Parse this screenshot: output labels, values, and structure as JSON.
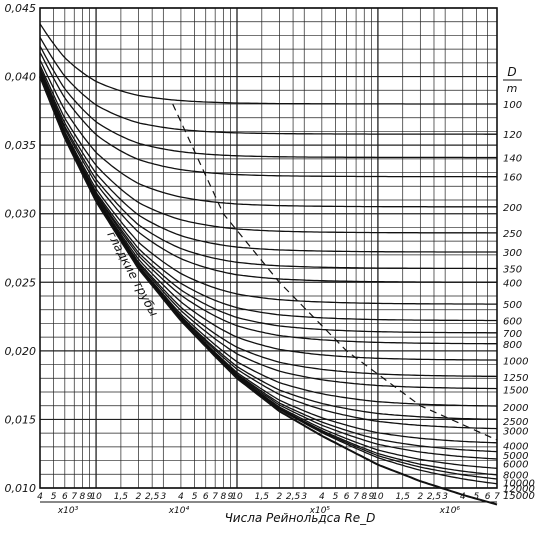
{
  "chart_data": {
    "type": "line",
    "title": "",
    "xlabel": "Числа Рейнольдса Re_D",
    "ylabel": "",
    "xscale": "log",
    "xlim": [
      4000,
      7000000
    ],
    "ylim": [
      0.01,
      0.045
    ],
    "y_ticks": [
      "0,010",
      "0,015",
      "0,020",
      "0,025",
      "0,030",
      "0,035",
      "0,040",
      "0,045"
    ],
    "x_decades": [
      {
        "ticks": [
          "4",
          "5",
          "6",
          "7",
          "8",
          "9",
          "10"
        ],
        "multiplier": "x10³"
      },
      {
        "ticks": [
          "1,5",
          "2",
          "2,5",
          "3",
          "4",
          "5",
          "6",
          "7",
          "8",
          "9",
          "10"
        ],
        "multiplier": "x10⁴"
      },
      {
        "ticks": [
          "1,5",
          "2",
          "2,5",
          "3",
          "4",
          "5",
          "6",
          "7",
          "8",
          "9",
          "10"
        ],
        "multiplier": "x10⁵"
      },
      {
        "ticks": [
          "1,5",
          "2",
          "2,5",
          "3",
          "4",
          "5",
          "6",
          "7"
        ],
        "multiplier": "x10⁶"
      }
    ],
    "ratio_header_top": "D",
    "ratio_header_bottom": "m",
    "smooth_label": "гладкие трубы",
    "smooth_pipes": {
      "x": [
        4000,
        6000,
        10000,
        20000,
        40000,
        70000,
        100000,
        200000,
        400000,
        1000000,
        2000000,
        4000000,
        7000000
      ],
      "y": [
        0.04,
        0.0355,
        0.0309,
        0.026,
        0.0222,
        0.0196,
        0.018,
        0.0156,
        0.0138,
        0.0117,
        0.0105,
        0.0095,
        0.0088
      ]
    },
    "series": [
      {
        "name": "100",
        "f_inf": 0.038
      },
      {
        "name": "120",
        "f_inf": 0.0358
      },
      {
        "name": "140",
        "f_inf": 0.0341
      },
      {
        "name": "160",
        "f_inf": 0.0327
      },
      {
        "name": "200",
        "f_inf": 0.0305
      },
      {
        "name": "250",
        "f_inf": 0.0286
      },
      {
        "name": "300",
        "f_inf": 0.0272
      },
      {
        "name": "350",
        "f_inf": 0.026
      },
      {
        "name": "400",
        "f_inf": 0.025
      },
      {
        "name": "500",
        "f_inf": 0.0234
      },
      {
        "name": "600",
        "f_inf": 0.0222
      },
      {
        "name": "700",
        "f_inf": 0.0213
      },
      {
        "name": "800",
        "f_inf": 0.0205
      },
      {
        "name": "1000",
        "f_inf": 0.0193
      },
      {
        "name": "1250",
        "f_inf": 0.0181
      },
      {
        "name": "1500",
        "f_inf": 0.0172
      },
      {
        "name": "2000",
        "f_inf": 0.0159
      },
      {
        "name": "2500",
        "f_inf": 0.0149
      },
      {
        "name": "3000",
        "f_inf": 0.0142
      },
      {
        "name": "4000",
        "f_inf": 0.0131
      },
      {
        "name": "5000",
        "f_inf": 0.0124
      },
      {
        "name": "6000",
        "f_inf": 0.0118
      },
      {
        "name": "8000",
        "f_inf": 0.011
      },
      {
        "name": "10000",
        "f_inf": 0.0104
      },
      {
        "name": "12000",
        "f_inf": 0.01
      },
      {
        "name": "15000",
        "f_inf": 0.0095
      }
    ],
    "transition_boundary": {
      "x": [
        35000,
        80000,
        200000,
        600000,
        2000000,
        7000000
      ],
      "y": [
        0.038,
        0.03,
        0.025,
        0.02,
        0.016,
        0.0135
      ]
    },
    "grid": true
  }
}
